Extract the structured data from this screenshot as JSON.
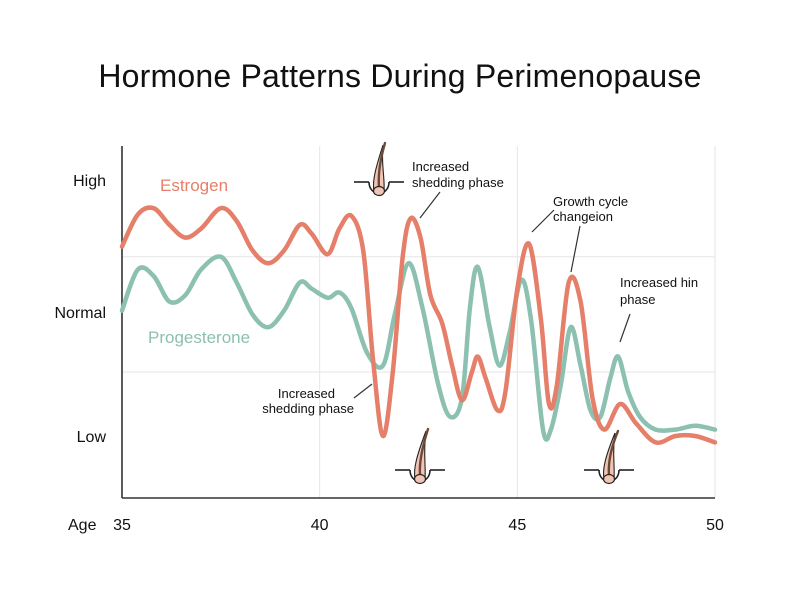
{
  "chart_data": {
    "type": "line",
    "title": "Hormone Patterns During Perimenopause",
    "xlabel": "Age",
    "ylabel": "",
    "xlim": [
      35,
      50
    ],
    "x_ticks": [
      "35",
      "40",
      "45",
      "50"
    ],
    "y_tick_labels": [
      "High",
      "Normal",
      "Low"
    ],
    "y_scale_note": "qualitative scale: 0 = Low, 1 = Normal, 2 = High",
    "ylim": [
      -0.6,
      2.6
    ],
    "grid": true,
    "series": [
      {
        "name": "Estrogen",
        "color": "#e57f6a",
        "points": [
          [
            35,
            1.48
          ],
          [
            35.4,
            1.73
          ],
          [
            35.8,
            1.78
          ],
          [
            36.2,
            1.65
          ],
          [
            36.6,
            1.55
          ],
          [
            37.0,
            1.62
          ],
          [
            37.5,
            1.78
          ],
          [
            37.9,
            1.68
          ],
          [
            38.3,
            1.45
          ],
          [
            38.7,
            1.35
          ],
          [
            39.1,
            1.45
          ],
          [
            39.5,
            1.65
          ],
          [
            39.8,
            1.58
          ],
          [
            40.2,
            1.42
          ],
          [
            40.5,
            1.62
          ],
          [
            40.8,
            1.72
          ],
          [
            41.1,
            1.45
          ],
          [
            41.35,
            0.6
          ],
          [
            41.6,
            0.0
          ],
          [
            41.85,
            0.5
          ],
          [
            42.1,
            1.4
          ],
          [
            42.3,
            1.7
          ],
          [
            42.55,
            1.55
          ],
          [
            42.8,
            1.1
          ],
          [
            43.1,
            0.88
          ],
          [
            43.35,
            0.55
          ],
          [
            43.6,
            0.28
          ],
          [
            43.85,
            0.5
          ],
          [
            44.0,
            0.62
          ],
          [
            44.2,
            0.45
          ],
          [
            44.5,
            0.2
          ],
          [
            44.7,
            0.35
          ],
          [
            45.0,
            1.15
          ],
          [
            45.3,
            1.5
          ],
          [
            45.6,
            0.9
          ],
          [
            45.8,
            0.25
          ],
          [
            46.0,
            0.4
          ],
          [
            46.3,
            1.2
          ],
          [
            46.6,
            1.05
          ],
          [
            46.9,
            0.3
          ],
          [
            47.2,
            0.05
          ],
          [
            47.6,
            0.25
          ],
          [
            48.0,
            0.1
          ],
          [
            48.5,
            -0.05
          ],
          [
            49.0,
            0.0
          ],
          [
            49.5,
            0.0
          ],
          [
            50.0,
            -0.05
          ]
        ]
      },
      {
        "name": "Progesterone",
        "color": "#8cc0b1",
        "points": [
          [
            35,
            0.98
          ],
          [
            35.4,
            1.3
          ],
          [
            35.8,
            1.25
          ],
          [
            36.2,
            1.05
          ],
          [
            36.6,
            1.1
          ],
          [
            37.0,
            1.3
          ],
          [
            37.5,
            1.4
          ],
          [
            37.9,
            1.2
          ],
          [
            38.3,
            0.95
          ],
          [
            38.7,
            0.85
          ],
          [
            39.1,
            0.98
          ],
          [
            39.5,
            1.2
          ],
          [
            39.8,
            1.15
          ],
          [
            40.2,
            1.08
          ],
          [
            40.5,
            1.12
          ],
          [
            40.8,
            1.0
          ],
          [
            41.2,
            0.65
          ],
          [
            41.6,
            0.55
          ],
          [
            41.9,
            0.95
          ],
          [
            42.25,
            1.35
          ],
          [
            42.6,
            1.0
          ],
          [
            43.0,
            0.4
          ],
          [
            43.3,
            0.15
          ],
          [
            43.6,
            0.3
          ],
          [
            43.8,
            1.0
          ],
          [
            44.0,
            1.32
          ],
          [
            44.3,
            0.85
          ],
          [
            44.55,
            0.55
          ],
          [
            44.8,
            0.8
          ],
          [
            45.1,
            1.22
          ],
          [
            45.35,
            0.9
          ],
          [
            45.65,
            0.05
          ],
          [
            45.85,
            0.05
          ],
          [
            46.1,
            0.4
          ],
          [
            46.35,
            0.85
          ],
          [
            46.6,
            0.55
          ],
          [
            46.85,
            0.2
          ],
          [
            47.1,
            0.15
          ],
          [
            47.35,
            0.45
          ],
          [
            47.55,
            0.62
          ],
          [
            47.8,
            0.35
          ],
          [
            48.1,
            0.15
          ],
          [
            48.5,
            0.05
          ],
          [
            49.0,
            0.05
          ],
          [
            49.5,
            0.08
          ],
          [
            50.0,
            0.05
          ]
        ]
      }
    ],
    "annotations": [
      {
        "lines": [
          "Increased",
          "shedding phase"
        ],
        "pointer_to": [
          42.2,
          1.62
        ]
      },
      {
        "lines": [
          "Growth cycle",
          "changeion"
        ],
        "pointer_to": [
          45.35,
          1.55
        ]
      },
      {
        "lines": [
          "Increased hin",
          "phase"
        ],
        "pointer_to": [
          46.35,
          1.15
        ]
      },
      {
        "lines": [
          "Increased",
          "shedding phase"
        ],
        "pointer_to": [
          41.4,
          0.05
        ]
      },
      {
        "lines": [
          "Increased hin",
          "phase_2"
        ],
        "pointer_to": [
          47.6,
          0.62
        ]
      }
    ]
  },
  "labels": {
    "title": "Hormone Patterns During Perimenopause",
    "age_label": "Age",
    "y_high": "High",
    "y_normal": "Normal",
    "y_low": "Low",
    "series_estrogen": "Estrogen",
    "series_progesterone": "Progesterone",
    "annot_top_1": "Increased",
    "annot_top_2": "shedding phase",
    "annot_growth_1": "Growth cycle",
    "annot_growth_2": "changeion",
    "annot_hin_1": "Increased hin",
    "annot_hin_2": "phase",
    "annot_bottom_1": "Increased",
    "annot_bottom_2": "shedding phase"
  },
  "icons": [
    "hair-follicle-icon",
    "hair-follicle-icon",
    "hair-follicle-icon"
  ],
  "colors": {
    "estrogen": "#e57f6a",
    "progesterone": "#8cc0b1",
    "grid": "#e6e6e6",
    "axis": "#333333",
    "follicle_fill": "#f2c4b4",
    "hair": "#6b4a3a"
  }
}
